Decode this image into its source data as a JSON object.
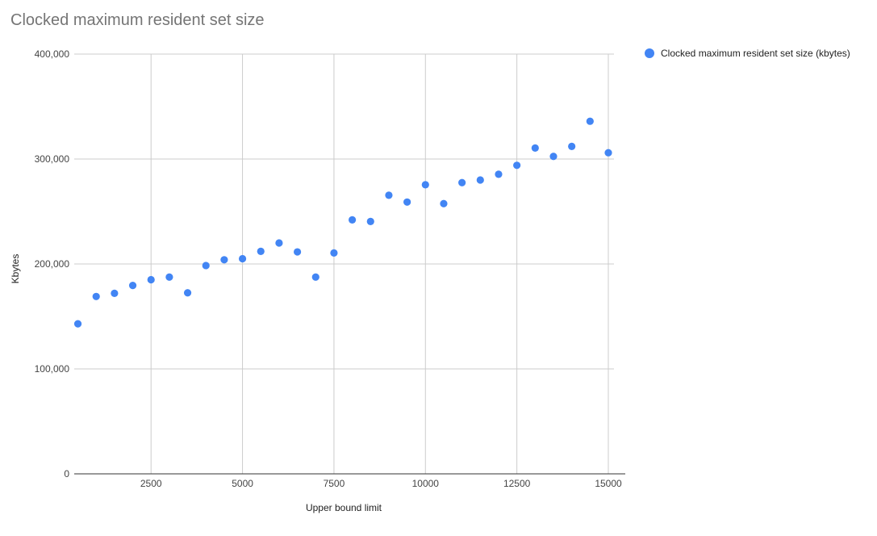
{
  "chart_data": {
    "type": "scatter",
    "title": "Clocked maximum resident set size",
    "xlabel": "Upper bound limit",
    "ylabel": "Kbytes",
    "xlim": [
      400,
      15000
    ],
    "ylim": [
      0,
      400000
    ],
    "x_ticks": [
      2500,
      5000,
      7500,
      10000,
      12500,
      15000
    ],
    "x_tick_labels": [
      "2500",
      "5000",
      "7500",
      "10000",
      "12500",
      "15000"
    ],
    "y_ticks": [
      0,
      100000,
      200000,
      300000,
      400000
    ],
    "y_tick_labels": [
      "0",
      "100,000",
      "200,000",
      "300,000",
      "400,000"
    ],
    "grid": true,
    "legend_position": "right",
    "series": [
      {
        "name": "Clocked maximum resident set size (kbytes)",
        "color": "#4285f4",
        "points": [
          {
            "x": 500,
            "y": 143000
          },
          {
            "x": 1000,
            "y": 169000
          },
          {
            "x": 1500,
            "y": 172000
          },
          {
            "x": 2000,
            "y": 179500
          },
          {
            "x": 2500,
            "y": 185000
          },
          {
            "x": 3000,
            "y": 187500
          },
          {
            "x": 3500,
            "y": 172500
          },
          {
            "x": 4000,
            "y": 198500
          },
          {
            "x": 4500,
            "y": 204000
          },
          {
            "x": 5000,
            "y": 205000
          },
          {
            "x": 5500,
            "y": 212000
          },
          {
            "x": 6000,
            "y": 220000
          },
          {
            "x": 6500,
            "y": 211500
          },
          {
            "x": 7000,
            "y": 187500
          },
          {
            "x": 7500,
            "y": 210500
          },
          {
            "x": 8000,
            "y": 242000
          },
          {
            "x": 8500,
            "y": 240500
          },
          {
            "x": 9000,
            "y": 265500
          },
          {
            "x": 9500,
            "y": 259000
          },
          {
            "x": 10000,
            "y": 275500
          },
          {
            "x": 10500,
            "y": 257500
          },
          {
            "x": 11000,
            "y": 277500
          },
          {
            "x": 11500,
            "y": 280000
          },
          {
            "x": 12000,
            "y": 285500
          },
          {
            "x": 12500,
            "y": 294000
          },
          {
            "x": 13000,
            "y": 310500
          },
          {
            "x": 13500,
            "y": 302500
          },
          {
            "x": 14000,
            "y": 312000
          },
          {
            "x": 14500,
            "y": 336000
          },
          {
            "x": 15000,
            "y": 306000
          }
        ]
      }
    ]
  }
}
